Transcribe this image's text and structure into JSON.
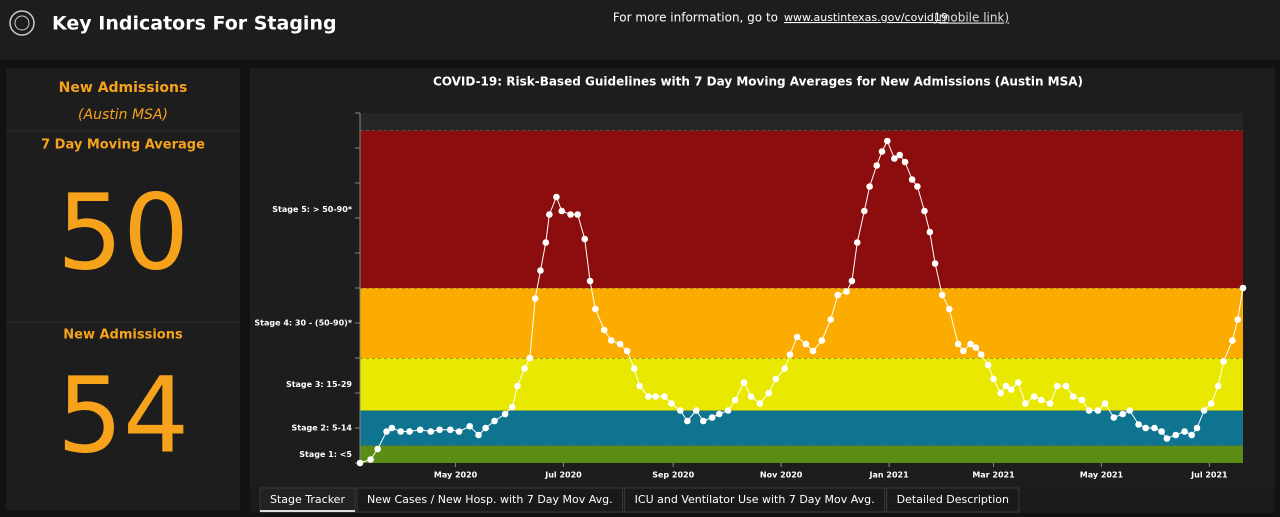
{
  "header": {
    "title": "Key Indicators For Staging",
    "info_text": "For more information, go to",
    "link": "www.austintexas.gov/covid19",
    "mobile_link": "(mobile link)"
  },
  "summary": {
    "heading": "New Admissions",
    "region": "(Austin MSA)",
    "average_label": "7 Day Moving Average",
    "average_value": "50",
    "daily_label": "New Admissions",
    "daily_value": "54"
  },
  "tabs": [
    "Stage Tracker",
    "New Cases / New Hosp. with 7 Day Mov Avg.",
    "ICU and Ventilator Use with 7 Day Mov Avg.",
    "Detailed Description"
  ],
  "chart_data": {
    "type": "scatter-line",
    "title": "COVID-19: Risk-Based Guidelines with 7 Day Moving Averages for New Admissions (Austin MSA)",
    "bands": [
      {
        "label": "Stage 1: <5",
        "from": 0,
        "to": 5,
        "color": "#5b8c16"
      },
      {
        "label": "Stage 2: 5-14",
        "from": 5,
        "to": 15,
        "color": "#0f7490"
      },
      {
        "label": "Stage 3: 15-29",
        "from": 15,
        "to": 30,
        "color": "#e8e800"
      },
      {
        "label": "Stage 4: 30 - (50-90)*",
        "from": 30,
        "to": 50,
        "color": "#fcab00"
      },
      {
        "label": "Stage 5: > 50-90*",
        "from": 50,
        "to": 95,
        "color": "#8c0d0d"
      }
    ],
    "x": [
      0,
      6,
      10,
      15,
      18,
      23,
      28,
      34,
      40,
      45,
      51,
      56,
      62,
      67,
      71,
      76,
      82,
      86,
      89,
      93,
      96,
      99,
      102,
      105,
      107,
      111,
      114,
      119,
      123,
      127,
      130,
      133,
      138,
      142,
      147,
      151,
      155,
      158,
      163,
      167,
      172,
      176,
      181,
      185,
      190,
      194,
      199,
      203,
      208,
      212,
      217,
      221,
      226,
      231,
      235,
      240,
      243,
      247,
      252,
      256,
      261,
      266,
      270,
      275,
      278,
      281,
      285,
      288,
      292,
      295,
      298,
      302,
      305,
      308,
      312,
      315,
      319,
      322,
      325,
      329,
      333,
      338,
      341,
      345,
      348,
      351,
      355,
      358,
      362,
      365,
      368,
      372,
      376,
      381,
      385,
      390,
      394,
      399,
      403,
      408,
      412,
      417,
      421,
      426,
      431,
      435,
      440,
      444,
      449,
      453,
      456,
      461,
      466,
      470,
      473,
      477,
      481,
      485,
      488,
      493,
      496,
      499
    ],
    "series": [
      {
        "name": "New Admissions",
        "color": "#ffffff",
        "values": [
          0,
          1,
          4,
          9,
          10,
          9,
          9,
          9.5,
          9,
          9.5,
          9.5,
          9,
          10.5,
          8,
          10,
          12,
          14,
          16,
          22,
          27,
          30,
          47,
          55,
          63,
          71,
          76,
          72,
          71,
          71,
          64,
          52,
          44,
          38,
          35,
          34,
          32,
          27,
          22,
          19,
          19,
          19,
          17,
          15,
          12,
          15,
          12,
          13,
          14,
          15,
          18,
          23,
          19,
          17,
          20,
          24,
          27,
          31,
          36,
          34,
          32,
          35,
          41,
          48,
          49,
          52,
          63,
          72,
          79,
          85,
          89,
          92,
          87,
          88,
          86,
          81,
          79,
          72,
          66,
          57,
          48,
          44,
          34,
          32,
          34,
          33,
          31,
          28,
          24,
          20,
          22,
          21,
          23,
          17,
          19,
          18,
          17,
          22,
          22,
          19,
          18,
          15,
          15,
          17,
          13,
          14,
          15,
          11,
          10,
          10,
          9,
          7,
          8,
          9,
          8,
          10,
          15,
          17,
          22,
          29,
          35,
          41,
          50
        ]
      }
    ],
    "xlim": [
      0,
      499
    ],
    "xticks": [
      {
        "value": 54,
        "label": "May 2020"
      },
      {
        "value": 115,
        "label": "Jul 2020"
      },
      {
        "value": 177,
        "label": "Sep 2020"
      },
      {
        "value": 238,
        "label": "Nov 2020"
      },
      {
        "value": 299,
        "label": "Jan 2021"
      },
      {
        "value": 358,
        "label": "Mar 2021"
      },
      {
        "value": 419,
        "label": "May 2021"
      },
      {
        "value": 480,
        "label": "Jul 2021"
      }
    ],
    "ylim": [
      0,
      100
    ],
    "yticks": [
      0,
      10,
      20,
      30,
      40,
      50,
      60,
      70,
      80,
      90,
      100
    ]
  }
}
